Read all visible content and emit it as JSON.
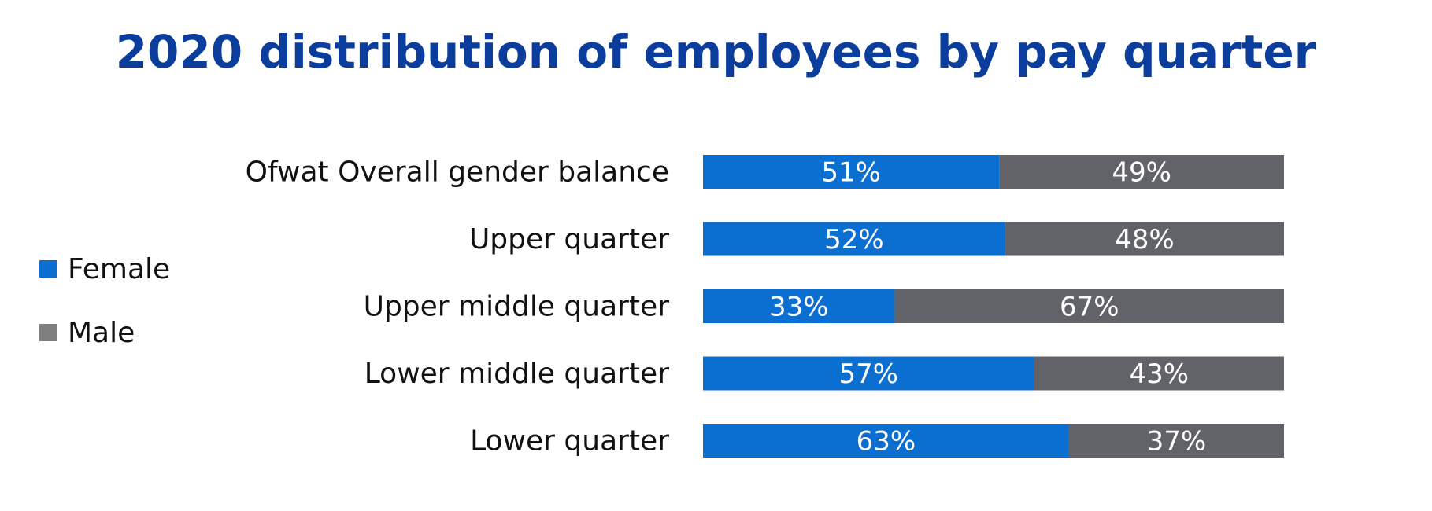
{
  "colors": {
    "title": "#0a3d9c",
    "female": "#0b6fd1",
    "male": "#626368",
    "male_legend": "#7f7f7f"
  },
  "chart_data": {
    "type": "bar",
    "orientation": "horizontal",
    "stacked": true,
    "title": "2020 distribution of employees by pay quarter",
    "categories": [
      "Ofwat Overall gender balance",
      "Upper quarter",
      "Upper middle quarter",
      "Lower middle quarter",
      "Lower quarter"
    ],
    "series": [
      {
        "name": "Female",
        "values": [
          51,
          52,
          33,
          57,
          63
        ],
        "labels": [
          "51%",
          "52%",
          "33%",
          "57%",
          "63%"
        ]
      },
      {
        "name": "Male",
        "values": [
          49,
          48,
          67,
          43,
          37
        ],
        "labels": [
          "49%",
          "48%",
          "67%",
          "43%",
          "37%"
        ]
      }
    ],
    "xlim": [
      0,
      100
    ],
    "unit": "%",
    "grid": false,
    "legend_position": "left"
  }
}
